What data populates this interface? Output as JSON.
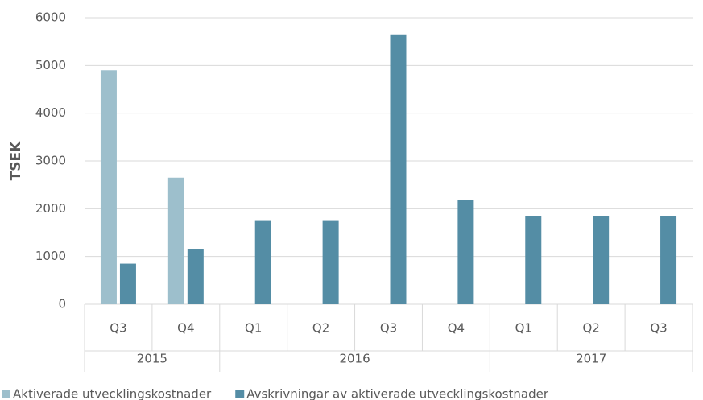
{
  "chart_data": {
    "type": "bar",
    "y_label": "TSEK",
    "groups": [
      {
        "name": "2015",
        "categories": [
          "Q3",
          "Q4"
        ]
      },
      {
        "name": "2016",
        "categories": [
          "Q1",
          "Q2",
          "Q3",
          "Q4"
        ]
      },
      {
        "name": "2017",
        "categories": [
          "Q1",
          "Q2",
          "Q3"
        ]
      }
    ],
    "series": [
      {
        "name": "Aktiverade utvecklingskostnader",
        "color": "#9dbfcc",
        "values": [
          4900,
          2650,
          null,
          null,
          null,
          null,
          null,
          null,
          null
        ]
      },
      {
        "name": "Avskrivningar av aktiverade utvecklingskostnader",
        "color": "#548da5",
        "values": [
          850,
          1150,
          1760,
          1760,
          5650,
          2190,
          1840,
          1840,
          1840
        ]
      }
    ],
    "ylim": [
      0,
      6000
    ],
    "yticks": [
      0,
      1000,
      2000,
      3000,
      4000,
      5000,
      6000
    ],
    "grid": true
  }
}
